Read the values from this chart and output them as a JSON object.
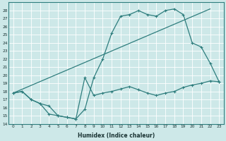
{
  "xlabel": "Humidex (Indice chaleur)",
  "bg_color": "#cde8e8",
  "grid_color": "#b0d4d4",
  "line_color": "#2e7d7d",
  "xlim": [
    -0.5,
    23.5
  ],
  "ylim": [
    14,
    29
  ],
  "xticks": [
    0,
    1,
    2,
    3,
    4,
    5,
    6,
    7,
    8,
    9,
    10,
    11,
    12,
    13,
    14,
    15,
    16,
    17,
    18,
    19,
    20,
    21,
    22,
    23
  ],
  "yticks": [
    14,
    15,
    16,
    17,
    18,
    19,
    20,
    21,
    22,
    23,
    24,
    25,
    26,
    27,
    28
  ],
  "line1_x": [
    0,
    1,
    2,
    3,
    4,
    5,
    6,
    7,
    8,
    9,
    10,
    11,
    12,
    13,
    14,
    15,
    16,
    17,
    18,
    19,
    20,
    21,
    22,
    23
  ],
  "line1_y": [
    17.8,
    18.0,
    17.0,
    16.5,
    16.2,
    15.0,
    14.8,
    14.6,
    15.8,
    19.7,
    22.0,
    25.2,
    27.3,
    27.5,
    28.0,
    27.5,
    27.3,
    28.0,
    28.2,
    27.5,
    24.0,
    23.5,
    21.5,
    19.2
  ],
  "line2_x": [
    0,
    1,
    2,
    3,
    4,
    5,
    6,
    7,
    8,
    9,
    10,
    11,
    12,
    13,
    14,
    15,
    16,
    17,
    18,
    19,
    20,
    21,
    22,
    23
  ],
  "line2_y": [
    17.8,
    18.0,
    17.0,
    16.5,
    15.2,
    15.0,
    14.8,
    14.6,
    19.7,
    17.5,
    17.8,
    18.0,
    18.3,
    18.6,
    18.2,
    17.8,
    17.5,
    17.8,
    18.0,
    18.5,
    18.8,
    19.0,
    19.3,
    19.2
  ],
  "line3_x": [
    0,
    22
  ],
  "line3_y": [
    17.8,
    28.2
  ]
}
